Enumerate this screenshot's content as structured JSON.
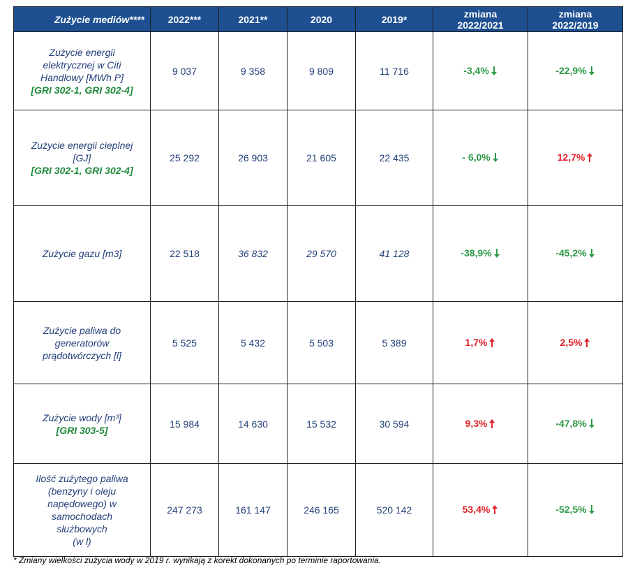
{
  "table": {
    "headers": [
      "Zużycie mediów****",
      "2022***",
      "2021**",
      "2020",
      "2019*",
      [
        "zmiana",
        "2022/2021"
      ],
      [
        "zmiana",
        "2022/2019"
      ]
    ],
    "rows": [
      {
        "label_lines": [
          "Zużycie energii",
          "elektrycznej w Citi",
          "Handlowy [MWh P]"
        ],
        "gri": "[GRI 302-1, GRI 302-4]",
        "values": [
          "9 037",
          "9 358",
          "9 809",
          "11 716"
        ],
        "change_2021": {
          "text": "-3,4%",
          "dir": "down"
        },
        "change_2019": {
          "text": "-22,9%",
          "dir": "down"
        }
      },
      {
        "label_lines": [
          "Zużycie energii cieplnej",
          "[GJ]"
        ],
        "gri": "[GRI 302-1, GRI 302-4]",
        "values": [
          "25 292",
          "26 903",
          "21 605",
          "22 435"
        ],
        "change_2021": {
          "text": "- 6,0%",
          "dir": "down"
        },
        "change_2019": {
          "text": "12,7%",
          "dir": "up"
        }
      },
      {
        "label_lines": [
          "Zużycie gazu [m3]"
        ],
        "gri": "",
        "values": [
          "22 518",
          "36 832",
          "29 570",
          "41 128"
        ],
        "values_italic": [
          false,
          true,
          true,
          true
        ],
        "change_2021": {
          "text": "-38,9%",
          "dir": "down"
        },
        "change_2019": {
          "text": "-45,2%",
          "dir": "down"
        }
      },
      {
        "label_lines": [
          "Zużycie paliwa do",
          "generatorów",
          "prądotwórczych [l]"
        ],
        "gri": "",
        "values": [
          "5 525",
          "5 432",
          "5 503",
          "5 389"
        ],
        "change_2021": {
          "text": "1,7%",
          "dir": "up"
        },
        "change_2019": {
          "text": "2,5%",
          "dir": "up"
        }
      },
      {
        "label_lines": [
          "Zużycie wody [m³]"
        ],
        "gri": "[GRI 303-5]",
        "values": [
          "15 984",
          "14 630",
          "15 532",
          "30 594"
        ],
        "change_2021": {
          "text": "9,3%",
          "dir": "up"
        },
        "change_2019": {
          "text": "-47,8%",
          "dir": "down"
        }
      },
      {
        "label_lines": [
          "Ilość zużytego paliwa",
          "(benzyny i oleju",
          "napędowego) w",
          "samochodach",
          "służbowych",
          "(w l)"
        ],
        "gri": "",
        "values": [
          "247 273",
          "161 147",
          "246 165",
          "520 142"
        ],
        "change_2021": {
          "text": "53,4%",
          "dir": "up"
        },
        "change_2019": {
          "text": "-52,5%",
          "dir": "down"
        }
      }
    ]
  },
  "footnote": "* Zmiany wielkości zużycia wody w 2019 r. wynikają z korekt dokonanych po terminie raportowania.",
  "colors": {
    "header_bg": "#1d4f91",
    "text": "#24407a",
    "gri": "#1f8a3c",
    "down": "#2e9a47",
    "up": "#e0202a"
  }
}
